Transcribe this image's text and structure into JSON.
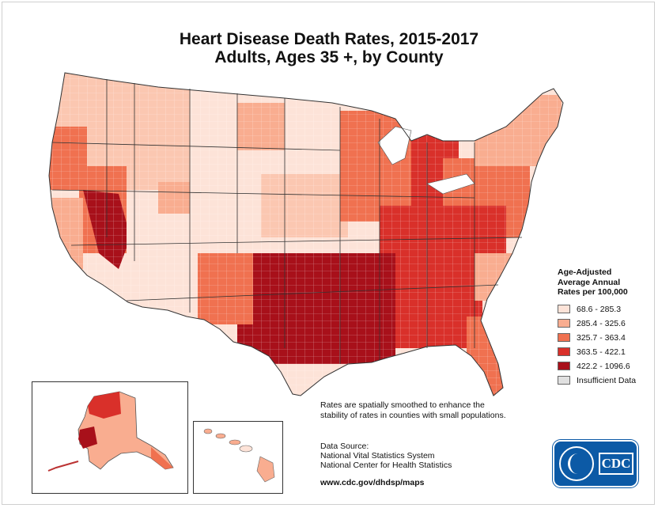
{
  "title": {
    "line1": "Heart Disease Death Rates, 2015-2017",
    "line2": "Adults, Ages 35 +, by County"
  },
  "legend": {
    "title_lines": [
      "Age-Adjusted",
      "Average Annual",
      "Rates per 100,000"
    ],
    "classes": [
      {
        "label": "68.6 - 285.3",
        "color": "#fde3d8"
      },
      {
        "label": "285.4 - 325.6",
        "color": "#f9ad90"
      },
      {
        "label": "325.7 - 363.4",
        "color": "#f07150"
      },
      {
        "label": "363.5 - 422.1",
        "color": "#d9302a"
      },
      {
        "label": "422.2 - 1096.6",
        "color": "#a8101a"
      },
      {
        "label": "Insufficient Data",
        "color": "#e0e0e0"
      }
    ]
  },
  "note": "Rates are spatially smoothed to enhance the stability of rates in counties with small populations.",
  "source": {
    "heading": "Data Source:",
    "lines": [
      "National Vital Statistics System",
      "National Center for Health Statistics"
    ]
  },
  "url": "www.cdc.gov/dhdsp/maps",
  "logo": {
    "text": "CDC"
  }
}
